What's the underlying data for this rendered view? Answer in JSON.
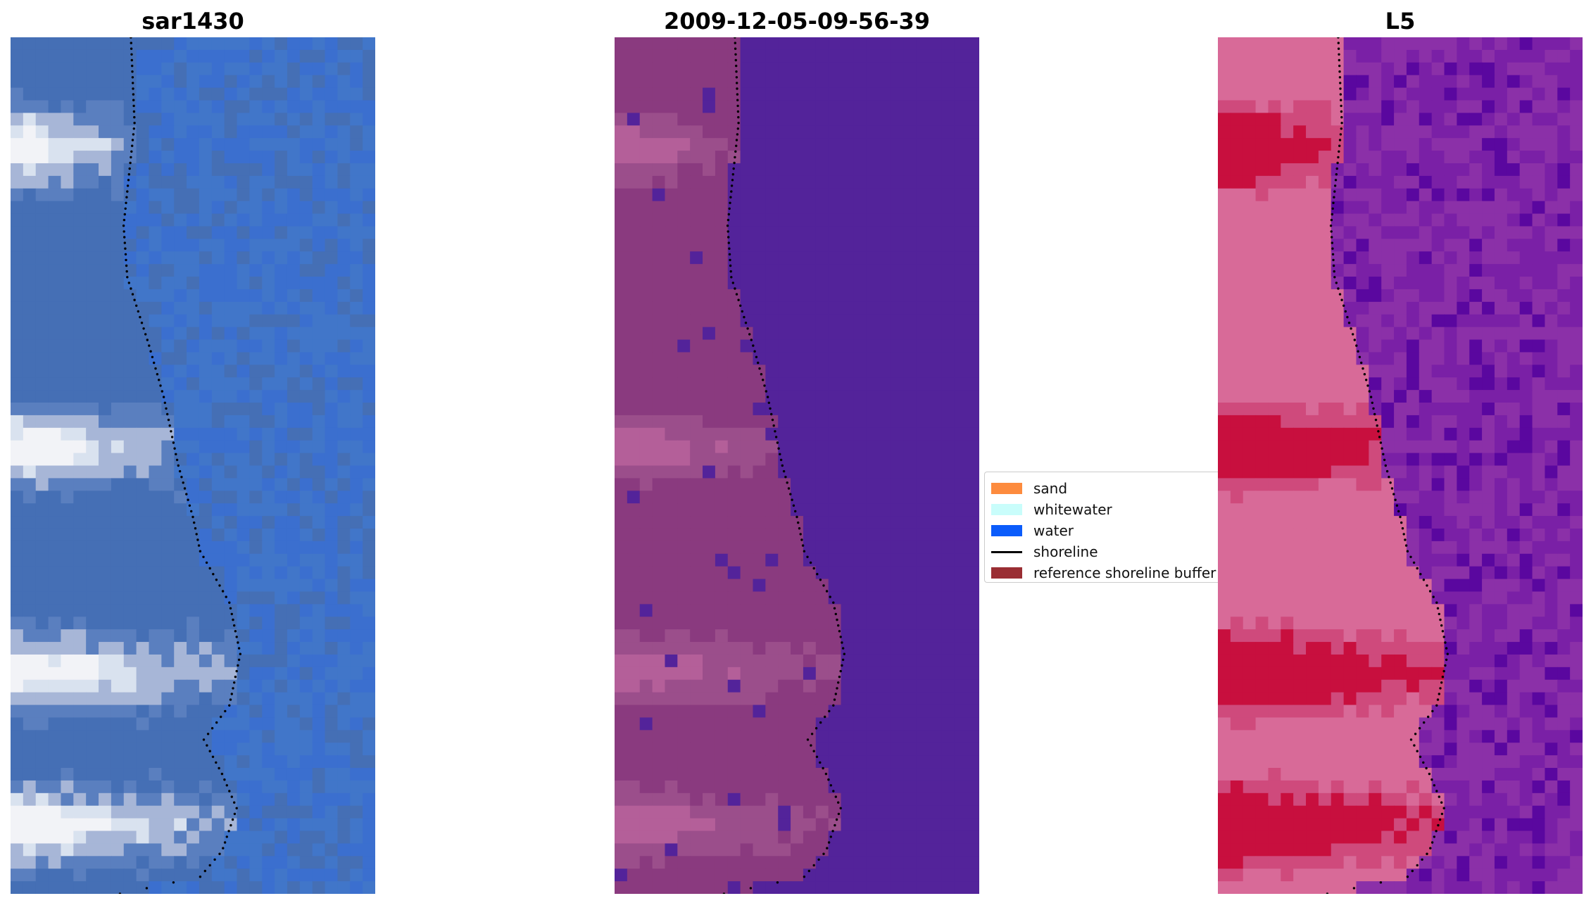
{
  "panels": [
    {
      "title": "sar1430",
      "image": "rgb-composite",
      "palette": [
        "#3b6fcf",
        "#4176c9",
        "#456fb5",
        "#5a7fbf",
        "#a7b6d7",
        "#d9e2ef",
        "#f2f3f7"
      ]
    },
    {
      "title": "2009-12-05-09-56-39",
      "image": "classified",
      "palette": [
        "#53239a",
        "#8a3a7f",
        "#9b4e8b",
        "#b45f99"
      ]
    },
    {
      "title": "L5",
      "image": "index-map",
      "palette": [
        "#c80f3e",
        "#cf4a7c",
        "#d86a98",
        "#8b30a8",
        "#7a20a6",
        "#5a079f"
      ]
    }
  ],
  "legend": {
    "items": [
      {
        "label": "sand",
        "color": "#fd8b3e",
        "type": "patch"
      },
      {
        "label": "whitewater",
        "color": "#c9fdfb",
        "type": "patch"
      },
      {
        "label": "water",
        "color": "#0b5cfb",
        "type": "patch"
      },
      {
        "label": "shoreline",
        "color": "#000000",
        "type": "line"
      },
      {
        "label": "reference shoreline buffer",
        "color": "#9a2e33",
        "type": "patch"
      }
    ]
  },
  "shoreline_color": "#000000"
}
